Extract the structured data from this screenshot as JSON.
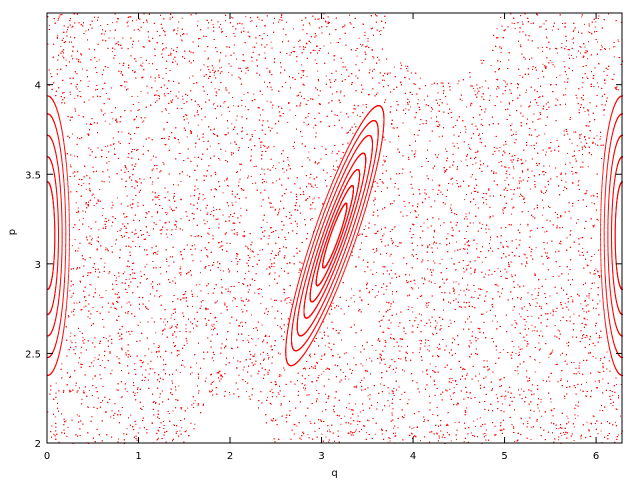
{
  "chart_data": {
    "type": "scatter",
    "title": "",
    "xlabel": "q",
    "ylabel": "p",
    "xlim": [
      0,
      6.2832
    ],
    "ylim": [
      2,
      4.4
    ],
    "xticks": [
      0,
      1,
      2,
      3,
      4,
      5,
      6
    ],
    "xtick_labels": [
      "0",
      "1",
      "2",
      "3",
      "4",
      "5",
      "6"
    ],
    "yticks": [
      2,
      2.5,
      3,
      3.5,
      4
    ],
    "ytick_labels": [
      "2",
      "2.5",
      "3",
      "3.5",
      "4"
    ],
    "grid": false,
    "legend": "none",
    "point_color": "#ff0000",
    "series": [
      {
        "kind": "chaotic-sea",
        "count": 16000,
        "voids": [
          {
            "cx": 4.3,
            "cy": 4.45,
            "rx": 0.62,
            "ry": 0.42
          },
          {
            "cx": 2.0,
            "cy": 2.0,
            "rx": 0.42,
            "ry": 0.26
          },
          {
            "cx": 3.14,
            "cy": 3.16,
            "rx": 0.2,
            "ry": 0.92,
            "tilt": -0.62
          },
          {
            "cx": 0.0,
            "cy": 3.16,
            "rx": 0.26,
            "ry": 0.82
          },
          {
            "cx": 6.2832,
            "cy": 3.16,
            "rx": 0.26,
            "ry": 0.82
          }
        ]
      },
      {
        "kind": "invariant-curves",
        "center": [
          3.14,
          3.16
        ],
        "rx": [
          0.2,
          0.17,
          0.14,
          0.11,
          0.085,
          0.06,
          0.04
        ],
        "ry": [
          0.88,
          0.78,
          0.68,
          0.56,
          0.45,
          0.34,
          0.22
        ],
        "tilt": -0.62,
        "points_per_curve": 900
      },
      {
        "kind": "invariant-curves",
        "center": [
          0.0,
          3.16
        ],
        "rx": [
          0.24,
          0.2,
          0.16,
          0.12,
          0.08
        ],
        "ry": [
          0.78,
          0.68,
          0.56,
          0.44,
          0.3
        ],
        "tilt": 0,
        "points_per_curve": 700
      },
      {
        "kind": "invariant-curves",
        "center": [
          6.2832,
          3.16
        ],
        "rx": [
          0.24,
          0.2,
          0.16,
          0.12,
          0.08
        ],
        "ry": [
          0.78,
          0.68,
          0.56,
          0.44,
          0.3
        ],
        "tilt": 0,
        "points_per_curve": 700
      }
    ]
  }
}
